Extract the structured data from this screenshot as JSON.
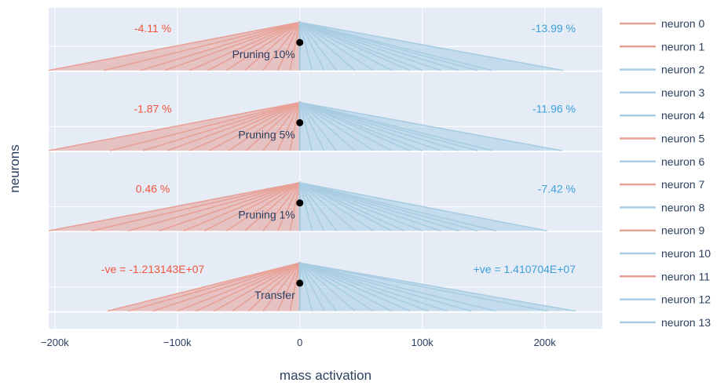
{
  "chart_data": {
    "type": "line",
    "title": "",
    "xlabel": "mass activation",
    "ylabel": "neurons",
    "xlim": [
      -205000,
      247000
    ],
    "x_ticks": [
      {
        "value": -200000,
        "label": "−200k"
      },
      {
        "value": -100000,
        "label": "−100k"
      },
      {
        "value": 0,
        "label": "0"
      },
      {
        "value": 100000,
        "label": "100k"
      },
      {
        "value": 200000,
        "label": "200k"
      }
    ],
    "grid": true,
    "legend_position": "right",
    "colors": {
      "negative": "#e8a197",
      "positive": "#a8cde3",
      "neg_text": "#ef553b",
      "pos_text": "#3d9fd8",
      "grid": "#ffffff",
      "plot_bg": "#e5ecf6"
    },
    "panels": [
      {
        "name": "Pruning 10%",
        "label": "Pruning 10%",
        "neg_text": "-4.11 %",
        "pos_text": "-13.99 %",
        "neg_ends": [
          -205000,
          -160000,
          -130000,
          -110000,
          -90000,
          -75000,
          -60000,
          -45000,
          -30000,
          -18000,
          -8000
        ],
        "pos_ends": [
          10000,
          20000,
          30000,
          45000,
          60000,
          75000,
          90000,
          100000,
          115000,
          130000,
          145000,
          157000,
          215000
        ]
      },
      {
        "name": "Pruning 5%",
        "label": "Pruning 5%",
        "neg_text": "-1.87 %",
        "pos_text": "-11.96 %",
        "neg_ends": [
          -205000,
          -155000,
          -128000,
          -108000,
          -90000,
          -74000,
          -58000,
          -44000,
          -30000,
          -18000,
          -8000
        ],
        "pos_ends": [
          10000,
          20000,
          30000,
          45000,
          60000,
          75000,
          90000,
          100000,
          115000,
          130000,
          145000,
          157000,
          214000
        ]
      },
      {
        "name": "Pruning 1%",
        "label": "Pruning 1%",
        "neg_text": "0.46 %",
        "pos_text": "-7.42 %",
        "neg_ends": [
          -205000,
          -170000,
          -140000,
          -115000,
          -95000,
          -78000,
          -60000,
          -45000,
          -30000,
          -18000,
          -8000
        ],
        "pos_ends": [
          10000,
          20000,
          30000,
          45000,
          60000,
          75000,
          85000,
          100000,
          115000,
          130000,
          145000,
          160000,
          202000
        ]
      },
      {
        "name": "Transfer",
        "label": "Transfer",
        "neg_text": "-ve = -1.213143E+07",
        "pos_text": "+ve = 1.410704E+07",
        "neg_ends": [
          -157000,
          -140000,
          -120000,
          -100000,
          -85000,
          -70000,
          -55000,
          -42000,
          -30000,
          -18000,
          -8000
        ],
        "pos_ends": [
          10000,
          20000,
          30000,
          45000,
          60000,
          75000,
          90000,
          105000,
          120000,
          140000,
          160000,
          202000,
          225000
        ]
      }
    ],
    "series": [
      {
        "name": "neuron 0",
        "color": "#e8a197"
      },
      {
        "name": "neuron 1",
        "color": "#e8a197"
      },
      {
        "name": "neuron 2",
        "color": "#a8cde3"
      },
      {
        "name": "neuron 3",
        "color": "#a8cde3"
      },
      {
        "name": "neuron 4",
        "color": "#a8cde3"
      },
      {
        "name": "neuron 5",
        "color": "#e8a197"
      },
      {
        "name": "neuron 6",
        "color": "#a8cde3"
      },
      {
        "name": "neuron 7",
        "color": "#e8a197"
      },
      {
        "name": "neuron 8",
        "color": "#a8cde3"
      },
      {
        "name": "neuron 9",
        "color": "#e8a197"
      },
      {
        "name": "neuron 10",
        "color": "#a8cde3"
      },
      {
        "name": "neuron 11",
        "color": "#e8a197"
      },
      {
        "name": "neuron 12",
        "color": "#a8cde3"
      },
      {
        "name": "neuron 13",
        "color": "#a8cde3"
      }
    ]
  }
}
